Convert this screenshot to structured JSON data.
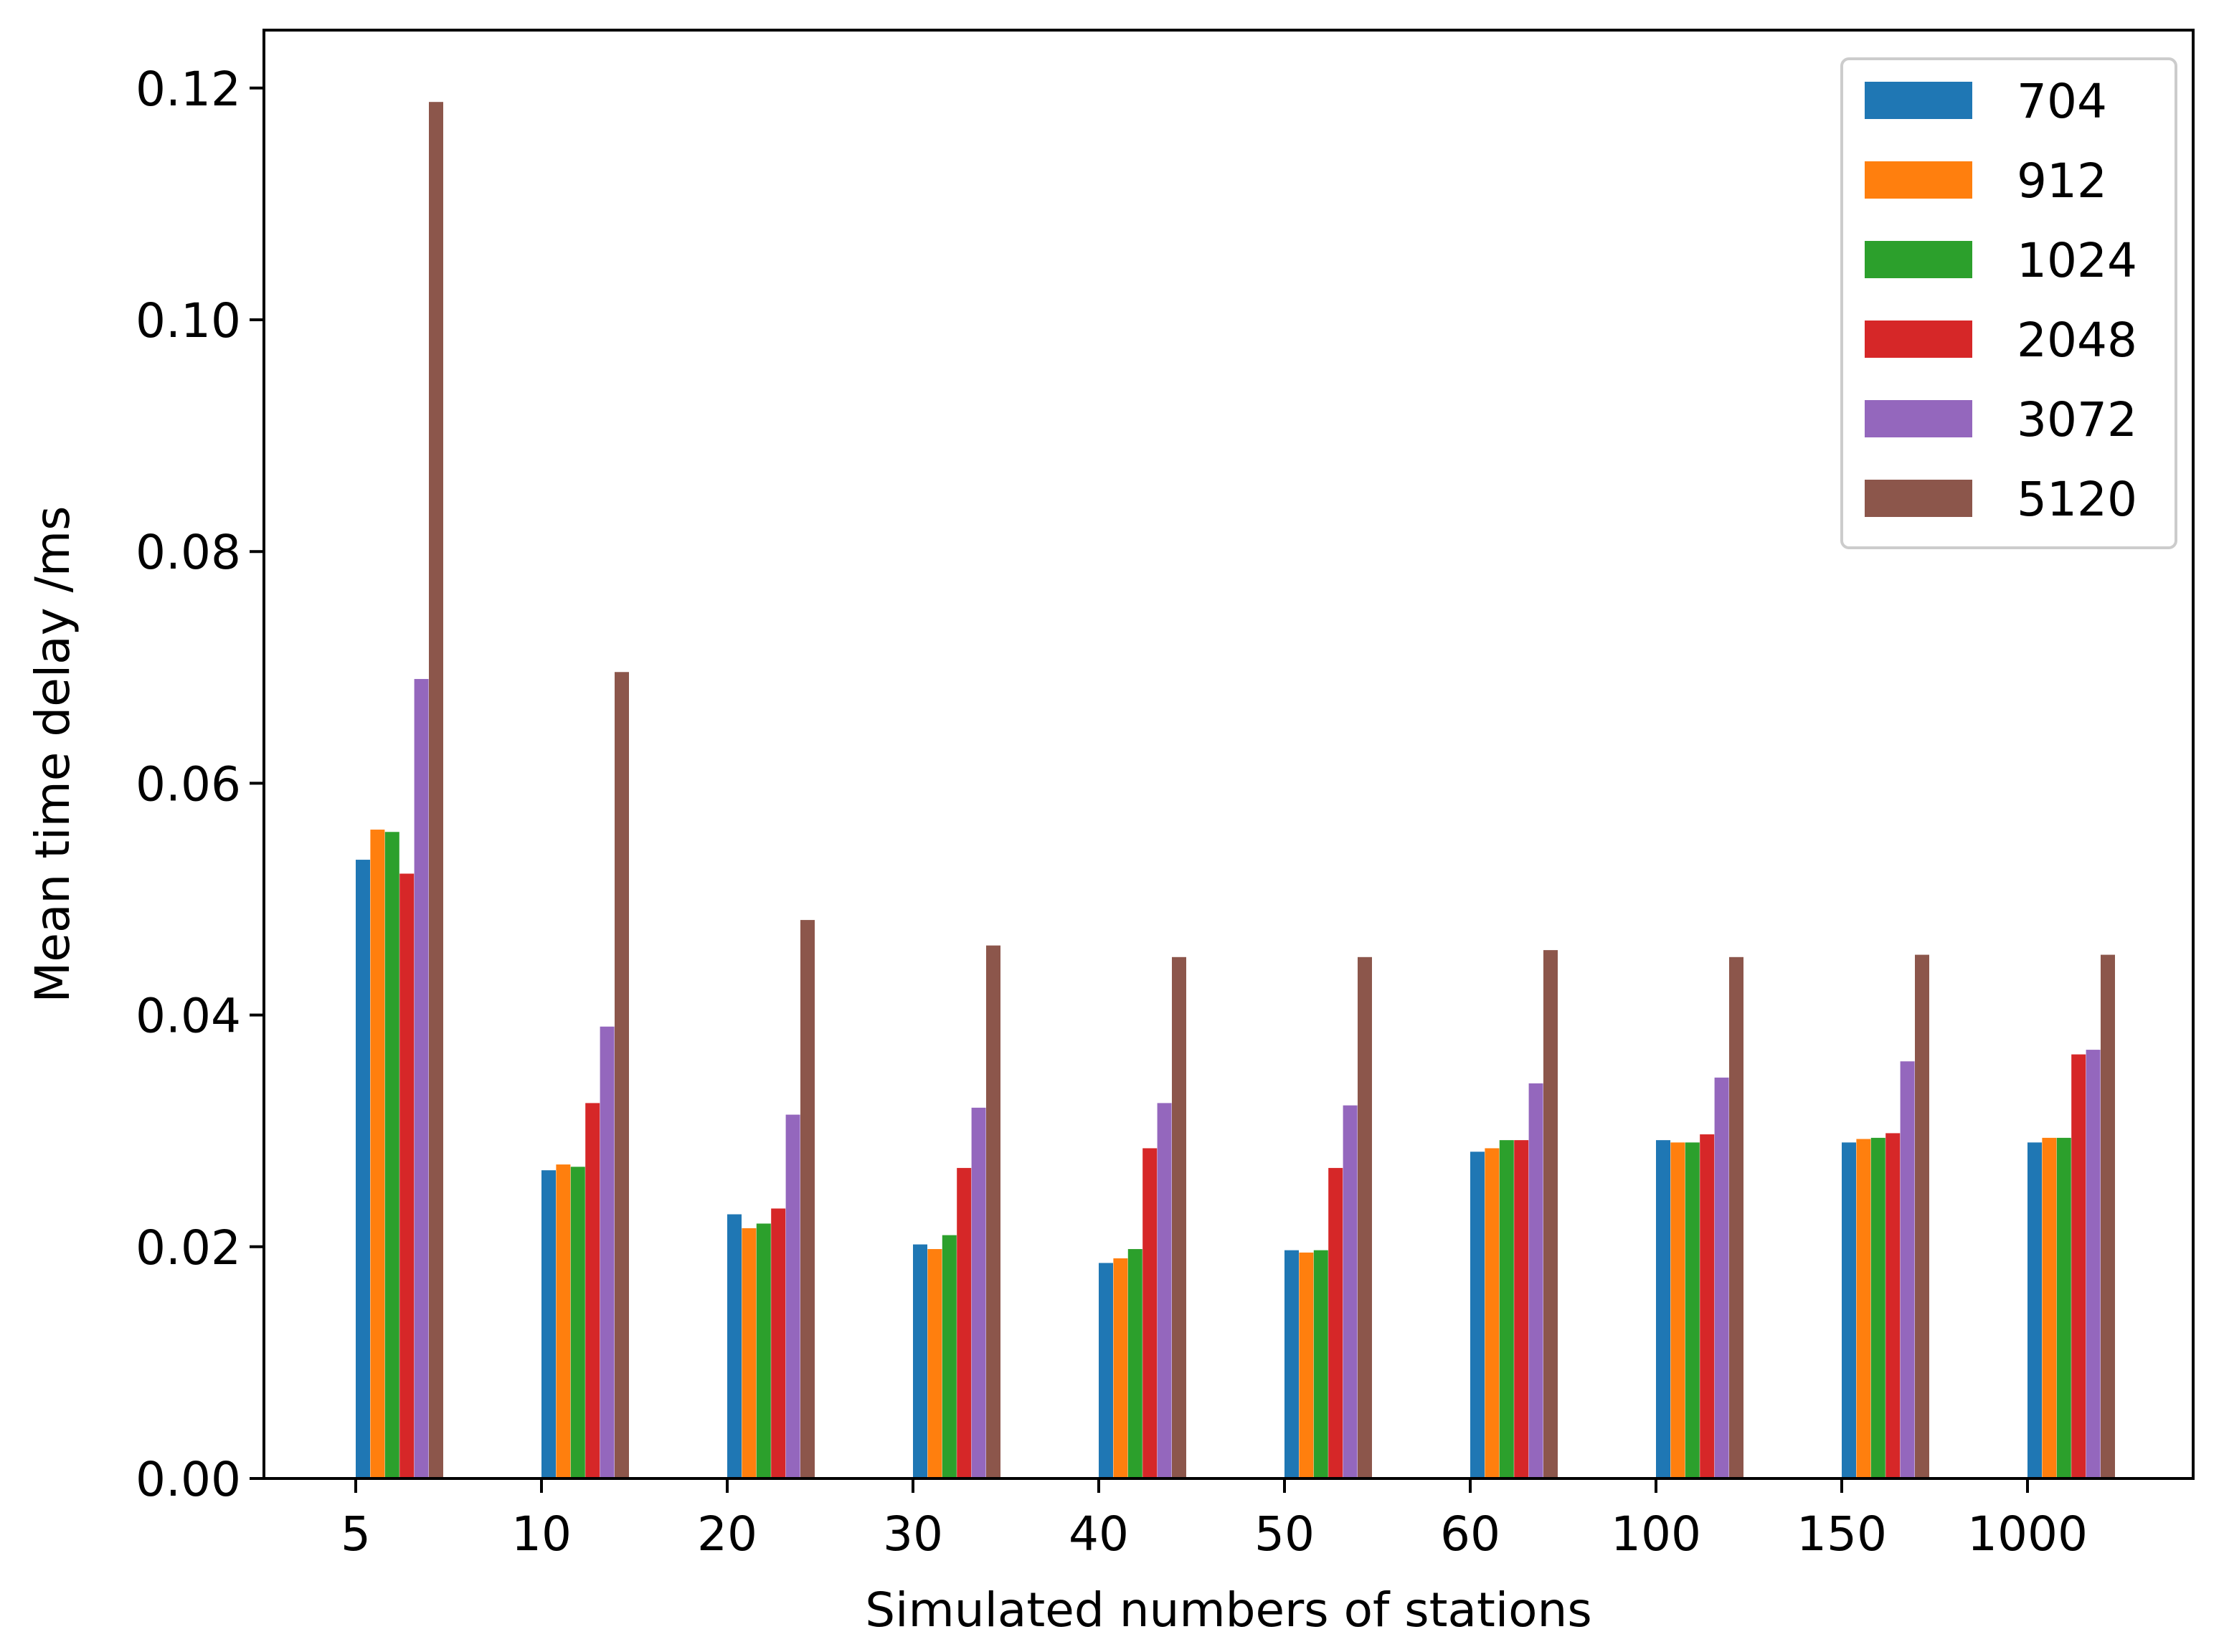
{
  "chart_data": {
    "type": "bar",
    "title": "",
    "xlabel": "Simulated numbers of stations",
    "ylabel": "Mean time delay /ms",
    "ylim": [
      0,
      0.125
    ],
    "yticks": [
      "0.00",
      "0.02",
      "0.04",
      "0.06",
      "0.08",
      "0.10",
      "0.12"
    ],
    "grid": false,
    "legend_position": "top-right",
    "categories": [
      "5",
      "10",
      "20",
      "30",
      "40",
      "50",
      "60",
      "100",
      "150",
      "1000"
    ],
    "series": [
      {
        "name": "704",
        "color": "#1f77b4",
        "values": [
          0.0534,
          0.0266,
          0.0228,
          0.0202,
          0.0186,
          0.0197,
          0.0282,
          0.0292,
          0.029,
          0.029
        ]
      },
      {
        "name": "912",
        "color": "#ff7f0e",
        "values": [
          0.056,
          0.0271,
          0.0216,
          0.0198,
          0.019,
          0.0195,
          0.0285,
          0.029,
          0.0293,
          0.0294
        ]
      },
      {
        "name": "1024",
        "color": "#2ca02c",
        "values": [
          0.0558,
          0.0269,
          0.022,
          0.021,
          0.0198,
          0.0197,
          0.0292,
          0.029,
          0.0294,
          0.0294
        ]
      },
      {
        "name": "2048",
        "color": "#d62728",
        "values": [
          0.0522,
          0.0324,
          0.0233,
          0.0268,
          0.0285,
          0.0268,
          0.0292,
          0.0297,
          0.0298,
          0.0366
        ]
      },
      {
        "name": "3072",
        "color": "#9467bd",
        "values": [
          0.069,
          0.039,
          0.0314,
          0.032,
          0.0324,
          0.0322,
          0.0341,
          0.0346,
          0.036,
          0.037
        ]
      },
      {
        "name": "5120",
        "color": "#8c564b",
        "values": [
          0.1188,
          0.0696,
          0.0482,
          0.046,
          0.045,
          0.045,
          0.0456,
          0.045,
          0.0452,
          0.0452
        ]
      }
    ]
  }
}
